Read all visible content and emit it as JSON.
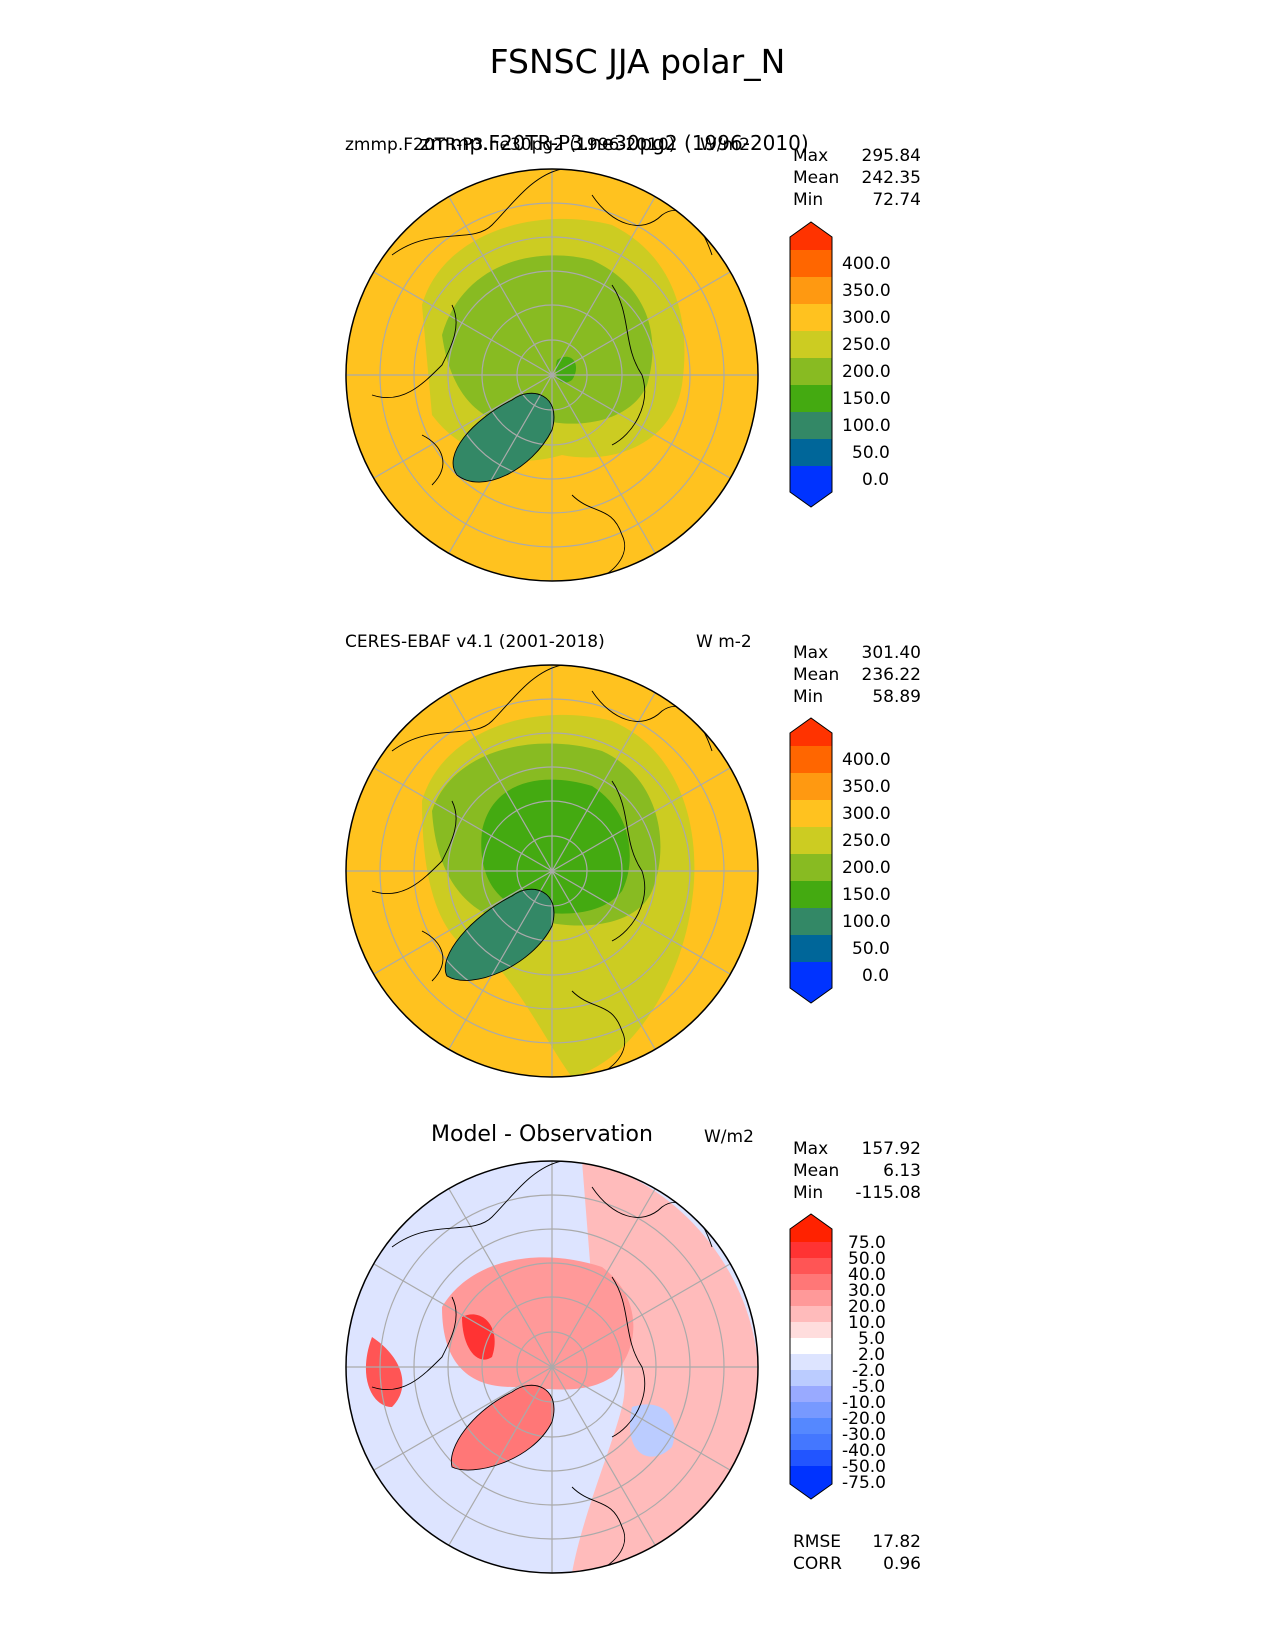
{
  "title": "FSNSC JJA polar_N",
  "panels": [
    {
      "id": "test",
      "left_label": "zmmp.F20TR-P3.ne30pg2 (1996-2010)",
      "center_label": "zmmp.F20TR-P3.ne30pg2 (1996-2010)",
      "right_label": "W/m2",
      "stats": [
        {
          "key": "Max",
          "value": "295.84"
        },
        {
          "key": "Mean",
          "value": "242.35"
        },
        {
          "key": "Min",
          "value": "72.74"
        }
      ],
      "colorbar_ticks": [
        "400.0",
        "350.0",
        "300.0",
        "250.0",
        "200.0",
        "150.0",
        "100.0",
        "50.0",
        "0.0"
      ]
    },
    {
      "id": "reference",
      "left_label": "CERES-EBAF v4.1 (2001-2018)",
      "right_label": "W m-2",
      "stats": [
        {
          "key": "Max",
          "value": "301.40"
        },
        {
          "key": "Mean",
          "value": "236.22"
        },
        {
          "key": "Min",
          "value": "58.89"
        }
      ],
      "colorbar_ticks": [
        "400.0",
        "350.0",
        "300.0",
        "250.0",
        "200.0",
        "150.0",
        "100.0",
        "50.0",
        "0.0"
      ]
    },
    {
      "id": "difference",
      "center_label": "Model - Observation",
      "right_label": "W/m2",
      "stats": [
        {
          "key": "Max",
          "value": "157.92"
        },
        {
          "key": "Mean",
          "value": "6.13"
        },
        {
          "key": "Min",
          "value": "-115.08"
        }
      ],
      "colorbar_ticks": [
        "75.0",
        "50.0",
        "40.0",
        "30.0",
        "20.0",
        "10.0",
        "5.0",
        "2.0",
        "-2.0",
        "-5.0",
        "-10.0",
        "-20.0",
        "-30.0",
        "-40.0",
        "-50.0",
        "-75.0"
      ],
      "extra_stats": [
        {
          "key": "RMSE",
          "value": "17.82"
        },
        {
          "key": "CORR",
          "value": "0.96"
        }
      ]
    }
  ],
  "colors": {
    "abs_scale": [
      "#0033ff",
      "#006699",
      "#338866",
      "#44aa11",
      "#88bb22",
      "#cccc22",
      "#ffc21f",
      "#ff9911",
      "#ff6600",
      "#ff3300"
    ],
    "diff_scale": [
      "#0033ff",
      "#2255ff",
      "#4477ff",
      "#5588ff",
      "#7799ff",
      "#99aaff",
      "#bbccff",
      "#dde4ff",
      "#ffffff",
      "#ffdddd",
      "#ffbbbb",
      "#ff9999",
      "#ff7777",
      "#ff5555",
      "#ff3333",
      "#ff2200",
      "#ff0000"
    ],
    "land_outline": "#000000",
    "graticule": "#aaaaaa"
  }
}
